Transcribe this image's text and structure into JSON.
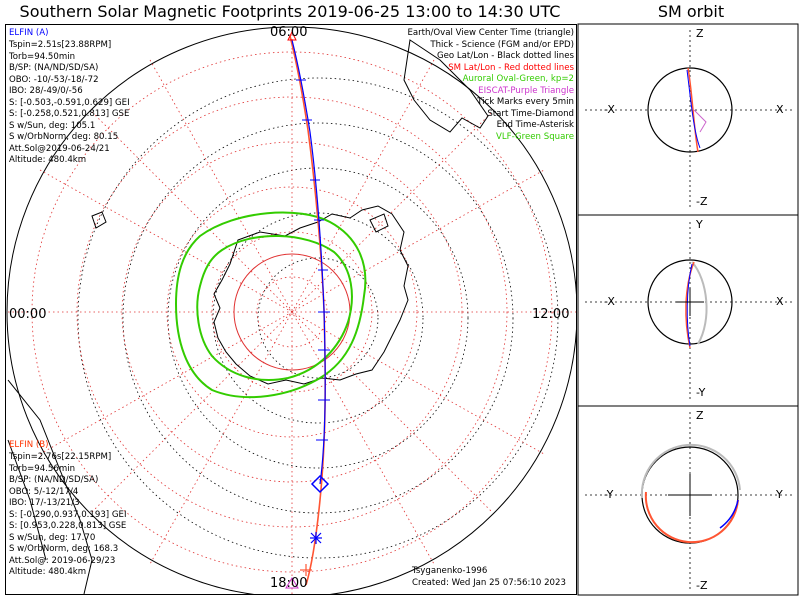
{
  "title": "Southern Solar Magnetic Footprints 2019-06-25 13:00 to 14:30 UTC",
  "sm_title": "SM orbit",
  "time_labels": {
    "top": "06:00",
    "left": "00:00",
    "right": "12:00",
    "bottom": "18:00"
  },
  "elfin_a": {
    "name": "ELFIN (A)",
    "color": "#0000ff",
    "lines": [
      "Tspin=2.51s[23.88RPM]",
      "Torb=94.50min",
      "B/SP: (NA/ND/SD/SA)",
      "OBO: -10/-53/-18/-72",
      "IBO: 28/-49/0/-56",
      "S: [-0.503,-0.591,0.629] GEI",
      "S: [-0.258,0.521,0.813] GSE",
      "S w/Sun, deg: 105.1",
      "S w/OrbNorm, deg: 80.15",
      "Att.Sol@2019-06-24/21",
      "Altitude: 480.4km"
    ]
  },
  "elfin_b": {
    "name": "ELFIN (B)",
    "color": "#ff3300",
    "lines": [
      "Tspin=2.76s[22.15RPM]",
      "Torb=94.56min",
      "B/SP: (NA/ND/SD/SA)",
      "OBO: 5/-12/17/4",
      "IBO: 17/-13/21/3",
      "S: [-0.290,0.937,0.193] GEI",
      "S: [0.953,0.228,0.813] GSE",
      "S w/Sun, deg: 17.70",
      "S w/OrbNorm, deg: 168.3",
      "Att.Sol@: 2019-06-29/23",
      "Altitude: 480.4km"
    ]
  },
  "legend": [
    {
      "text": "Earth/Oval View Center Time (triangle)",
      "color": "#000000"
    },
    {
      "text": "Thick - Science (FGM and/or EPD)",
      "color": "#000000"
    },
    {
      "text": "Geo Lat/Lon - Black dotted lines",
      "color": "#000000"
    },
    {
      "text": "SM Lat/Lon - Red dotted lines",
      "color": "#ff0000"
    },
    {
      "text": "Auroral Oval-Green, kp=2",
      "color": "#33cc00"
    },
    {
      "text": "EISCAT-Purple Triangle",
      "color": "#cc33cc"
    },
    {
      "text": "Tick Marks every 5min",
      "color": "#000000"
    },
    {
      "text": "Start Time-Diamond",
      "color": "#000000"
    },
    {
      "text": "End Time-Asterisk",
      "color": "#000000"
    },
    {
      "text": "VLF-Green Square",
      "color": "#33cc00"
    }
  ],
  "credits": {
    "model": "Tsyganenko-1996",
    "created": "Created: Wed Jan 25 07:56:10 2023"
  },
  "sm_panels": [
    {
      "top": "Z",
      "bottom": "-Z",
      "left": "-X",
      "right": "X"
    },
    {
      "top": "Y",
      "bottom": "-Y",
      "left": "-X",
      "right": "X"
    },
    {
      "top": "Z",
      "bottom": "-Z",
      "left": "-Y",
      "right": "Y"
    }
  ]
}
